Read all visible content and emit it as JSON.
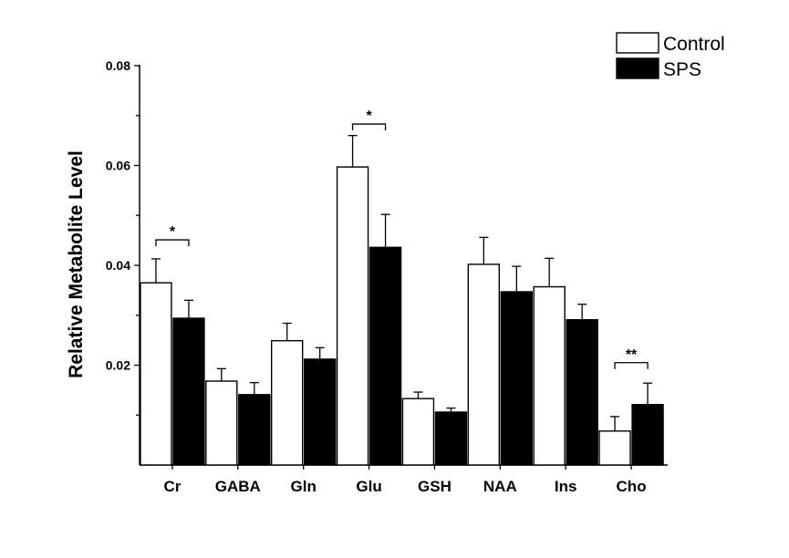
{
  "chart_data": {
    "type": "bar",
    "title": "",
    "xlabel": "",
    "ylabel": "Relative Metabolite Level",
    "ylim": [
      0,
      0.08
    ],
    "yticks": [
      0.02,
      0.04,
      0.06,
      0.08
    ],
    "ytick_labels": [
      "0.02",
      "0.04",
      "0.06",
      "0.08"
    ],
    "grid": false,
    "legend_position": "top-right",
    "categories": [
      "Cr",
      "GABA",
      "Gln",
      "Glu",
      "GSH",
      "NAA",
      "Ins",
      "Cho"
    ],
    "series": [
      {
        "name": "Control",
        "color": "#ffffff",
        "values": [
          0.0365,
          0.0168,
          0.0249,
          0.0597,
          0.0133,
          0.0402,
          0.0357,
          0.0068
        ],
        "errors": [
          0.0048,
          0.0025,
          0.0035,
          0.0063,
          0.0013,
          0.0054,
          0.0057,
          0.0029
        ]
      },
      {
        "name": "SPS",
        "color": "#000000",
        "values": [
          0.0294,
          0.0141,
          0.0212,
          0.0436,
          0.0106,
          0.0347,
          0.0291,
          0.0121
        ],
        "errors": [
          0.0036,
          0.0024,
          0.0023,
          0.0066,
          0.0008,
          0.0051,
          0.0031,
          0.0043
        ]
      }
    ],
    "annotations": [
      {
        "category": "Cr",
        "label": "*",
        "y": 0.0451
      },
      {
        "category": "Glu",
        "label": "*",
        "y": 0.0683
      },
      {
        "category": "Cho",
        "label": "**",
        "y": 0.0205
      }
    ]
  }
}
